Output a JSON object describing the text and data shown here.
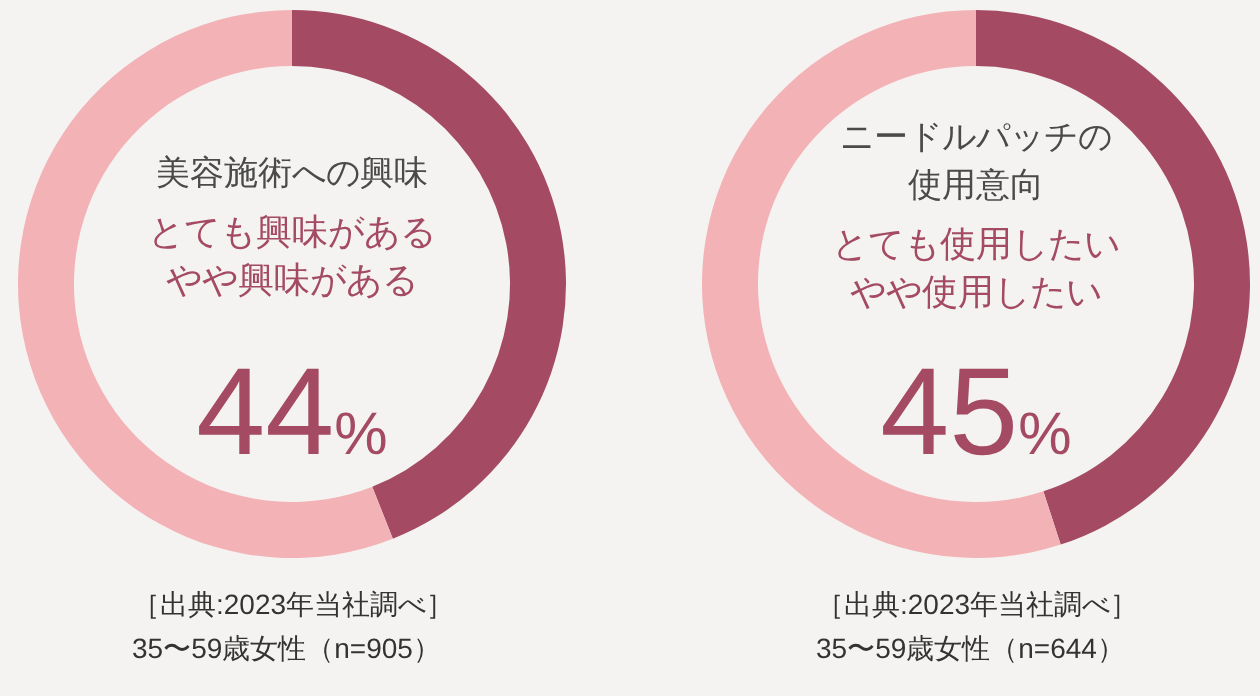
{
  "chart_data": [
    {
      "type": "donut",
      "title": "美容施術への興味",
      "categories": [
        "とても興味があるやや興味がある",
        null
      ],
      "values": [
        44,
        56
      ],
      "colors": [
        "#a44b63",
        "#f3b3b6"
      ],
      "value_labels": [
        "44%",
        null
      ],
      "annotations": [
        "［出典:2023年当社調べ］",
        "35〜59歳女性（n=905）"
      ]
    },
    {
      "type": "donut",
      "title": "ニードルパッチの使用意向",
      "categories": [
        "とても使用したいやや使用したい",
        null
      ],
      "values": [
        45,
        55
      ],
      "colors": [
        "#a44b63",
        "#f3b3b6"
      ],
      "value_labels": [
        "45%",
        null
      ],
      "annotations": [
        "［出典:2023年当社調べ］",
        "35〜59歳女性（n=644）"
      ]
    }
  ]
}
